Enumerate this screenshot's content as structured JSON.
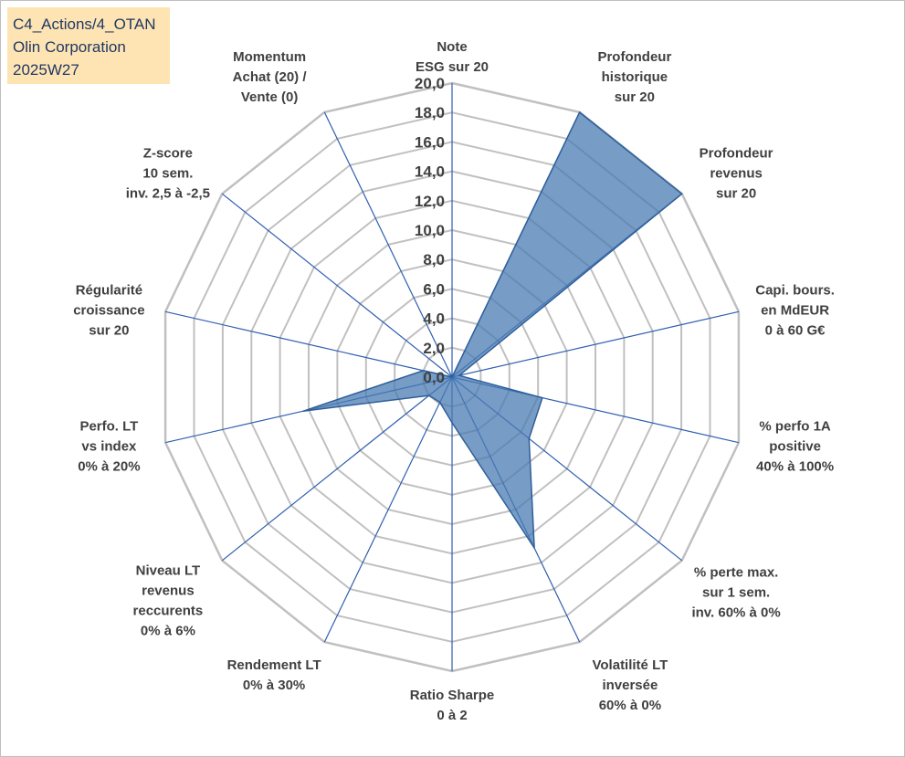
{
  "header": {
    "lines": [
      "C4_Actions/4_OTAN",
      "Olin Corporation",
      "2025W27"
    ]
  },
  "colors": {
    "fill": "#4a7bb3",
    "stroke": "#2e5f99",
    "grid": "#c0c0c0",
    "spoke": "#2f5fb0",
    "title_bg": "#ffe4b3",
    "title_text": "#1f3864"
  },
  "chart_data": {
    "type": "radar",
    "rmin": 0,
    "rmax": 20,
    "ticks": [
      "0,0",
      "2,0",
      "4,0",
      "6,0",
      "8,0",
      "10,0",
      "12,0",
      "14,0",
      "16,0",
      "18,0",
      "20,0"
    ],
    "axes": [
      {
        "label": [
          "Note",
          "ESG sur 20"
        ],
        "value": 0
      },
      {
        "label": [
          "Profondeur",
          "historique",
          "sur 20"
        ],
        "value": 20
      },
      {
        "label": [
          "Profondeur",
          "revenus",
          "sur 20"
        ],
        "value": 20
      },
      {
        "label": [
          "Capi. bours.",
          "en MdEUR",
          "0 à 60 G€"
        ],
        "value": 0.5
      },
      {
        "label": [
          "% perfo 1A",
          "positive",
          "40% à 100%"
        ],
        "value": 6.3
      },
      {
        "label": [
          "% perte max.",
          "sur 1 sem.",
          "inv. 60% à 0%"
        ],
        "value": 6.7
      },
      {
        "label": [
          "Volatilité LT",
          "inversée",
          "60% à 0%"
        ],
        "value": 12.9
      },
      {
        "label": [
          "Ratio Sharpe",
          "0 à 2"
        ],
        "value": 3.1
      },
      {
        "label": [
          "Rendement LT",
          "0% à 30%"
        ],
        "value": 1.9
      },
      {
        "label": [
          "Niveau LT",
          "revenus",
          "reccurents",
          "0% à 6%"
        ],
        "value": 2.0
      },
      {
        "label": [
          "Perfo. LT",
          "vs index",
          "0% à 20%"
        ],
        "value": 10.4
      },
      {
        "label": [
          "Régularité",
          "croissance",
          "sur 20"
        ],
        "value": 2.0
      },
      {
        "label": [
          "Z-score",
          "10 sem.",
          "inv. 2,5 à -2,5"
        ],
        "value": 0
      },
      {
        "label": [
          "Momentum",
          "Achat (20) /",
          "Vente (0)"
        ],
        "value": 0
      }
    ]
  }
}
